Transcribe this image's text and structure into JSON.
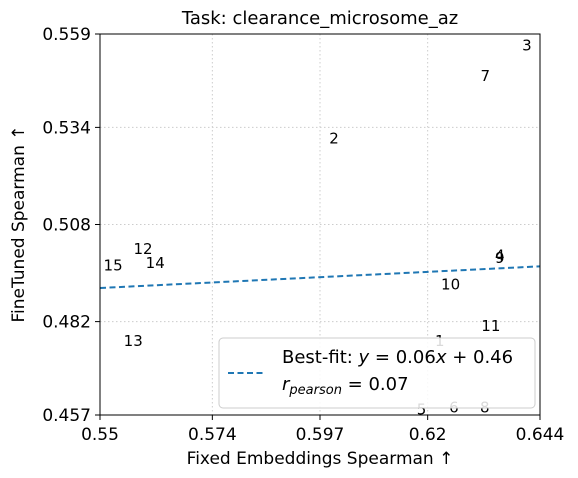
{
  "chart_data": {
    "type": "scatter",
    "title": "Task: clearance_microsome_az",
    "xlabel": "Fixed Embeddings Spearman ↑",
    "ylabel": "FineTuned Spearman ↑",
    "xlim": [
      0.55,
      0.644
    ],
    "ylim": [
      0.457,
      0.559
    ],
    "xticks": [
      "0.55",
      "0.574",
      "0.597",
      "0.62",
      "0.644"
    ],
    "yticks": [
      "0.457",
      "0.482",
      "0.508",
      "0.534",
      "0.559"
    ],
    "xtick_values": [
      0.55,
      0.574,
      0.597,
      0.62,
      0.644
    ],
    "ytick_values": [
      0.457,
      0.482,
      0.508,
      0.534,
      0.559
    ],
    "grid": true,
    "points": [
      {
        "label": "1",
        "x": 0.6226,
        "y": 0.4768
      },
      {
        "label": "2",
        "x": 0.6,
        "y": 0.531
      },
      {
        "label": "3",
        "x": 0.6412,
        "y": 0.5559
      },
      {
        "label": "4",
        "x": 0.6354,
        "y": 0.4997
      },
      {
        "label": "5",
        "x": 0.6187,
        "y": 0.4585
      },
      {
        "label": "6",
        "x": 0.6256,
        "y": 0.459
      },
      {
        "label": "7",
        "x": 0.6323,
        "y": 0.5477
      },
      {
        "label": "8",
        "x": 0.6322,
        "y": 0.459
      },
      {
        "label": "9",
        "x": 0.6354,
        "y": 0.499
      },
      {
        "label": "10",
        "x": 0.6249,
        "y": 0.492
      },
      {
        "label": "11",
        "x": 0.6335,
        "y": 0.4808
      },
      {
        "label": "12",
        "x": 0.5592,
        "y": 0.5014
      },
      {
        "label": "13",
        "x": 0.5571,
        "y": 0.4768
      },
      {
        "label": "14",
        "x": 0.5618,
        "y": 0.4977
      },
      {
        "label": "15",
        "x": 0.5528,
        "y": 0.497
      }
    ],
    "fit_line": {
      "slope": 0.06,
      "intercept": 0.46
    },
    "legend": {
      "placement": "lower-right",
      "fit_label": "Best-fit: y = 0.06x + 0.46",
      "pearson_label": "r_pearson = 0.07"
    },
    "colors": {
      "fit": "#1f77b4",
      "grid": "#cccccc"
    }
  }
}
